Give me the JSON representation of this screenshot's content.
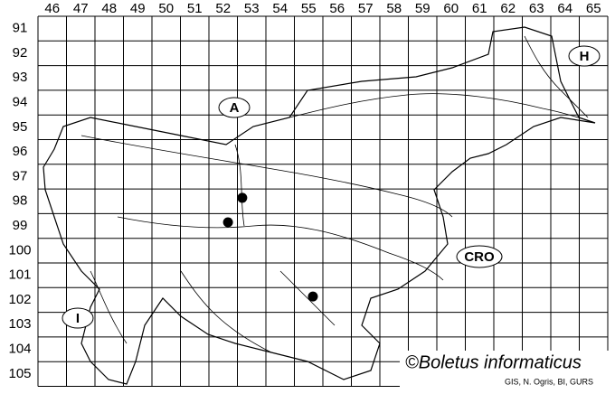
{
  "columns": [
    46,
    47,
    48,
    49,
    50,
    51,
    52,
    53,
    54,
    55,
    56,
    57,
    58,
    59,
    60,
    61,
    62,
    63,
    64,
    65
  ],
  "rows": [
    91,
    92,
    93,
    94,
    95,
    96,
    97,
    98,
    99,
    100,
    101,
    102,
    103,
    104,
    105
  ],
  "country_labels": [
    "A",
    "H",
    "I",
    "CRO"
  ],
  "points": [
    {
      "x": 53.17,
      "y": 98.36
    },
    {
      "x": 52.67,
      "y": 99.35
    },
    {
      "x": 55.65,
      "y": 102.36
    }
  ],
  "copyright": "©Boletus informaticus",
  "credit": "GIS, N. Ogris, BI, GURS"
}
